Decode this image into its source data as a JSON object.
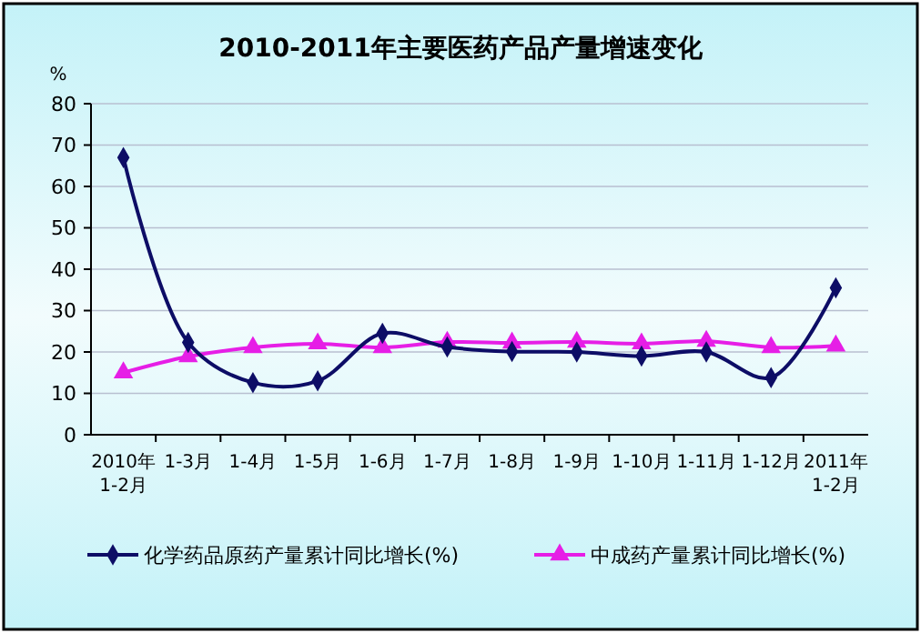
{
  "chart_data": {
    "type": "line",
    "title": "2010-2011年主要医药产品产量增速变化",
    "ylabel": "%",
    "categories": [
      "2010年\n1-2月",
      "1-3月",
      "1-4月",
      "1-5月",
      "1-6月",
      "1-7月",
      "1-8月",
      "1-9月",
      "1-10月",
      "1-11月",
      "1-12月",
      "2011年\n1-2月"
    ],
    "series": [
      {
        "name": "化学药品原药产量累计同比增长(%)",
        "color": "#0d0d66",
        "marker": "diamond",
        "values": [
          67,
          22.3,
          12.6,
          13,
          24.5,
          21.2,
          20.1,
          20,
          19,
          20,
          13.8,
          35.5
        ]
      },
      {
        "name": "中成药产量累计同比增长(%)",
        "color": "#e61ee6",
        "marker": "triangle",
        "values": [
          15,
          18.9,
          21.1,
          22,
          21.1,
          22.4,
          22.2,
          22.4,
          22,
          22.6,
          21.1,
          21.5
        ]
      }
    ],
    "ylim": [
      0,
      80
    ],
    "yticks": [
      0,
      10,
      20,
      30,
      40,
      50,
      60,
      70,
      80
    ],
    "grid": "y",
    "legend": "bottom"
  }
}
